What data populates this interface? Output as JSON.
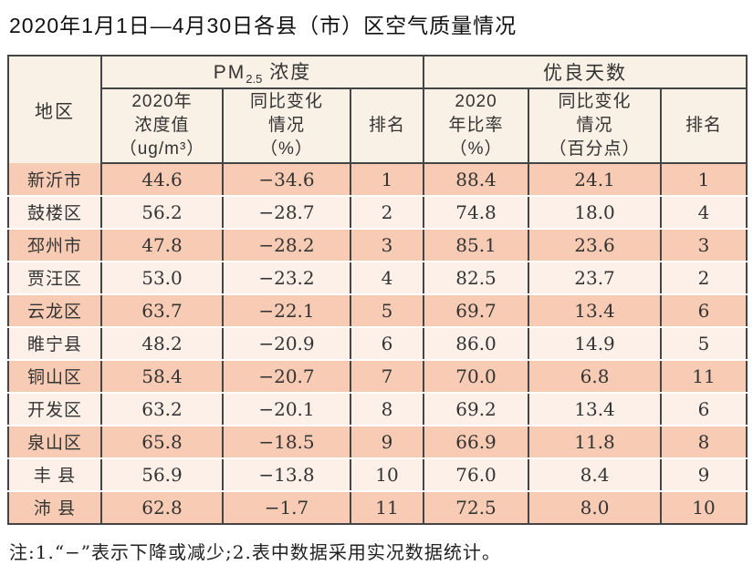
{
  "colors": {
    "border": "#454545",
    "row_dark_bg": "#f8ccb4",
    "row_light_bg": "#fcf0e9",
    "header_bg": "#faf1e6",
    "title_color": "#111111",
    "text_color": "#333333"
  },
  "page": {
    "title": "2020年1月1日—4月30日各县（市）区空气质量情况",
    "footnote": "注:1.“−”表示下降或减少;2.表中数据采用实况数据统计。"
  },
  "table": {
    "header": {
      "region": "地区",
      "pm_group_prefix": "PM",
      "pm_group_sub": "2.5",
      "pm_group_suffix": " 浓度",
      "good_group": "优良天数",
      "sub_columns": [
        "2020年\n浓度值\n（ug/m³）",
        "同比变化\n情况\n（%）",
        "排名",
        "2020\n年比率\n（%）",
        "同比变化\n情况\n（百分点）",
        "排名"
      ]
    },
    "rows": [
      {
        "region": "新沂市",
        "pm_value": "44.6",
        "pm_change": "−34.6",
        "pm_rank": "1",
        "good_ratio": "88.4",
        "good_change": "24.1",
        "good_rank": "1"
      },
      {
        "region": "鼓楼区",
        "pm_value": "56.2",
        "pm_change": "−28.7",
        "pm_rank": "2",
        "good_ratio": "74.8",
        "good_change": "18.0",
        "good_rank": "4"
      },
      {
        "region": "邳州市",
        "pm_value": "47.8",
        "pm_change": "−28.2",
        "pm_rank": "3",
        "good_ratio": "85.1",
        "good_change": "23.6",
        "good_rank": "3"
      },
      {
        "region": "贾汪区",
        "pm_value": "53.0",
        "pm_change": "−23.2",
        "pm_rank": "4",
        "good_ratio": "82.5",
        "good_change": "23.7",
        "good_rank": "2"
      },
      {
        "region": "云龙区",
        "pm_value": "63.7",
        "pm_change": "−22.1",
        "pm_rank": "5",
        "good_ratio": "69.7",
        "good_change": "13.4",
        "good_rank": "6"
      },
      {
        "region": "睢宁县",
        "pm_value": "48.2",
        "pm_change": "−20.9",
        "pm_rank": "6",
        "good_ratio": "86.0",
        "good_change": "14.9",
        "good_rank": "5"
      },
      {
        "region": "铜山区",
        "pm_value": "58.4",
        "pm_change": "−20.7",
        "pm_rank": "7",
        "good_ratio": "70.0",
        "good_change": "6.8",
        "good_rank": "11"
      },
      {
        "region": "开发区",
        "pm_value": "63.2",
        "pm_change": "−20.1",
        "pm_rank": "8",
        "good_ratio": "69.2",
        "good_change": "13.4",
        "good_rank": "6"
      },
      {
        "region": "泉山区",
        "pm_value": "65.8",
        "pm_change": "−18.5",
        "pm_rank": "9",
        "good_ratio": "66.9",
        "good_change": "11.8",
        "good_rank": "8"
      },
      {
        "region": "丰 县",
        "pm_value": "56.9",
        "pm_change": "−13.8",
        "pm_rank": "10",
        "good_ratio": "76.0",
        "good_change": "8.4",
        "good_rank": "9"
      },
      {
        "region": "沛 县",
        "pm_value": "62.8",
        "pm_change": "−1.7",
        "pm_rank": "11",
        "good_ratio": "72.5",
        "good_change": "8.0",
        "good_rank": "10"
      }
    ]
  }
}
